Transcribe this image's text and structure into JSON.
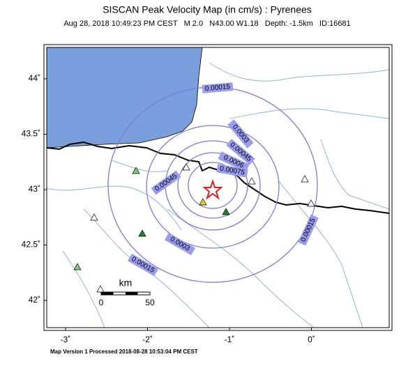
{
  "header": {
    "title": "SISCAN Peak Velocity Map (in cm/s) : Pyrenees",
    "subtitle": "Aug 28, 2018 10:49:23 PM CEST   M 2.0   N43.00 W1.18   Depth: -1.5km   ID:16681"
  },
  "map": {
    "lat_ticks": [
      {
        "value": 44,
        "label": "44˚"
      },
      {
        "value": 43.5,
        "label": "43.5˚"
      },
      {
        "value": 43,
        "label": "43˚"
      },
      {
        "value": 42.5,
        "label": "42.5˚"
      },
      {
        "value": 42,
        "label": "42˚"
      }
    ],
    "lon_ticks": [
      {
        "value": -3,
        "label": "-3˚"
      },
      {
        "value": -2,
        "label": "-2˚"
      },
      {
        "value": -1,
        "label": "-1˚"
      },
      {
        "value": 0,
        "label": "0˚"
      }
    ],
    "contours": [
      0.00015,
      0.0003,
      0.00045,
      0.0006,
      0.00075
    ],
    "scale": {
      "unit": "km",
      "start": "0",
      "end": "50"
    }
  },
  "footer": "Map Version 1 Processed 2018-08-28 10:53:04 PM CEST"
}
